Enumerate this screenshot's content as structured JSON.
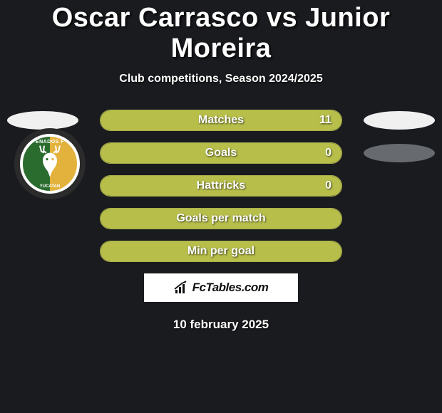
{
  "title": "Oscar Carrasco vs Junior Moreira",
  "subtitle": "Club competitions, Season 2024/2025",
  "date_line": "10 february 2025",
  "brand": {
    "text": "FcTables.com"
  },
  "fill_color": "#b7be4a",
  "border_color": "#a7b04a",
  "side_ellipse_color": "#f0f0f0",
  "side_ellipse_gray": "#676a6f",
  "club": {
    "top_text": "ENADOS F",
    "bottom_text": "YUCATAN"
  },
  "stats": [
    {
      "label": "Matches",
      "value": "11",
      "fill_pct": 100,
      "show_value": true,
      "left_ellipse": true,
      "right_ellipse": "light"
    },
    {
      "label": "Goals",
      "value": "0",
      "fill_pct": 100,
      "show_value": true,
      "left_ellipse": false,
      "right_ellipse": "gray"
    },
    {
      "label": "Hattricks",
      "value": "0",
      "fill_pct": 100,
      "show_value": true,
      "left_ellipse": false,
      "right_ellipse": "none"
    },
    {
      "label": "Goals per match",
      "value": "",
      "fill_pct": 100,
      "show_value": false,
      "left_ellipse": false,
      "right_ellipse": "none"
    },
    {
      "label": "Min per goal",
      "value": "",
      "fill_pct": 100,
      "show_value": false,
      "left_ellipse": false,
      "right_ellipse": "none"
    }
  ]
}
